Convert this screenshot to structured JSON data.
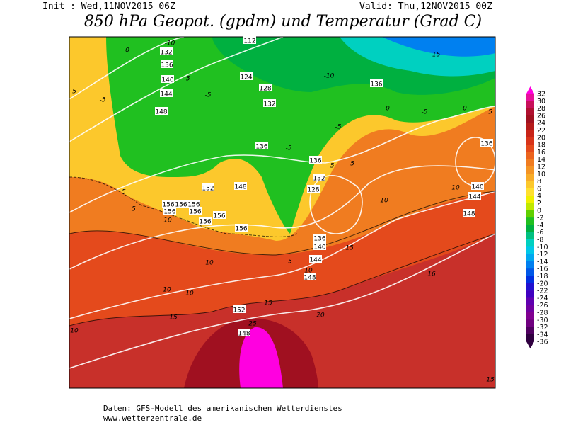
{
  "header": {
    "init": "Init : Wed,11NOV2015 06Z",
    "valid": "Valid: Thu,12NOV2015 00Z",
    "title": "850 hPa Geopot. (gpdm) und Temperatur (Grad C)"
  },
  "footer": {
    "line1": "Daten: GFS-Modell des amerikanischen Wetterdienstes",
    "line2": "www.wetterzentrale.de"
  },
  "colorbar": {
    "labels": [
      32,
      30,
      28,
      26,
      24,
      22,
      20,
      18,
      16,
      14,
      12,
      10,
      8,
      6,
      4,
      2,
      0,
      -2,
      -4,
      -6,
      -8,
      -10,
      -12,
      -14,
      -16,
      -18,
      -20,
      -22,
      -24,
      -26,
      -28,
      -30,
      -32,
      -34,
      -36
    ],
    "colors": [
      "#ff00e0",
      "#e8109a",
      "#c8105a",
      "#b01030",
      "#a01020",
      "#b41a1a",
      "#c82418",
      "#d8341a",
      "#e44a1c",
      "#ec641e",
      "#f07c20",
      "#f49424",
      "#f8ac28",
      "#fcc82c",
      "#ffe030",
      "#f0f000",
      "#c0e800",
      "#60d000",
      "#20c020",
      "#00b040",
      "#00c080",
      "#00d0c0",
      "#00c8e8",
      "#00a8f0",
      "#0080f0",
      "#0058e8",
      "#0030e0",
      "#2010d0",
      "#4000c0",
      "#6000b0",
      "#7000a0",
      "#800090",
      "#700080",
      "#500060",
      "#300040"
    ]
  },
  "map": {
    "labels": [
      "112",
      "132",
      "136",
      "140",
      "144",
      "148",
      "124",
      "128",
      "132",
      "136",
      "136",
      "132",
      "128",
      "152",
      "148",
      "156",
      "156",
      "156",
      "156",
      "156",
      "156",
      "156",
      "156",
      "136",
      "140",
      "144",
      "148",
      "152",
      "148",
      "136",
      "136",
      "140",
      "144",
      "148",
      "-10",
      "-5",
      "-5",
      "-15",
      "-10",
      "-5",
      "0",
      "0",
      "5",
      "-5",
      "-5",
      "-5",
      "10",
      "10",
      "5",
      "5",
      "5",
      "10",
      "10",
      "5",
      "10",
      "15",
      "16",
      "10",
      "10",
      "15",
      "15",
      "20",
      "25",
      "10",
      "15",
      "5",
      "0",
      "-5"
    ]
  }
}
